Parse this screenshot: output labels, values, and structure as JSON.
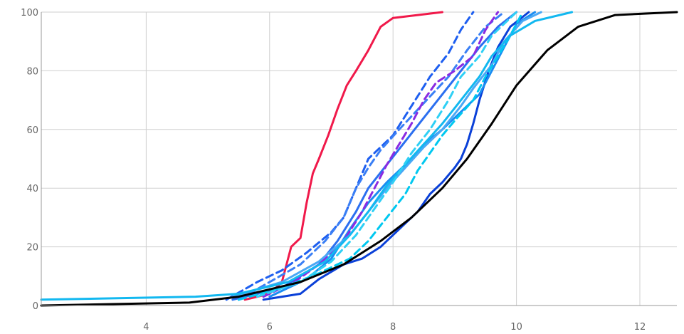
{
  "chart_data": {
    "type": "line",
    "title": "",
    "xlabel": "",
    "ylabel": "",
    "xlim": [
      2.3,
      12.6
    ],
    "ylim": [
      0,
      100
    ],
    "xticks": [
      4,
      6,
      8,
      10,
      12
    ],
    "yticks": [
      0,
      20,
      40,
      60,
      80,
      100
    ],
    "x_tick_labels": [
      "4",
      "6",
      "8",
      "10",
      "12"
    ],
    "y_tick_labels": [
      "0",
      "20",
      "40",
      "60",
      "80",
      "100"
    ],
    "grid": true,
    "legend": "none",
    "series": [
      {
        "color": "#000000",
        "dash": "solid",
        "points": [
          [
            2.3,
            0
          ],
          [
            4.7,
            1
          ],
          [
            5.5,
            3
          ],
          [
            6.5,
            8
          ],
          [
            7.2,
            14
          ],
          [
            7.8,
            22
          ],
          [
            8.3,
            30
          ],
          [
            8.8,
            40
          ],
          [
            9.2,
            50
          ],
          [
            9.6,
            62
          ],
          [
            10.0,
            75
          ],
          [
            10.5,
            87
          ],
          [
            11.0,
            95
          ],
          [
            11.6,
            99
          ],
          [
            12.6,
            100
          ]
        ]
      },
      {
        "color": "#f0194a",
        "dash": "solid",
        "points": [
          [
            5.6,
            2
          ],
          [
            6.0,
            4
          ],
          [
            6.2,
            8
          ],
          [
            6.35,
            20
          ],
          [
            6.5,
            23
          ],
          [
            6.6,
            35
          ],
          [
            6.7,
            45
          ],
          [
            6.8,
            50
          ],
          [
            6.95,
            58
          ],
          [
            7.1,
            67
          ],
          [
            7.25,
            75
          ],
          [
            7.4,
            80
          ],
          [
            7.6,
            87
          ],
          [
            7.8,
            95
          ],
          [
            8.0,
            98
          ],
          [
            8.8,
            100
          ]
        ]
      },
      {
        "color": "#0a40d8",
        "dash": "solid",
        "points": [
          [
            5.9,
            2
          ],
          [
            6.5,
            4
          ],
          [
            6.8,
            9
          ],
          [
            7.2,
            14
          ],
          [
            7.5,
            16
          ],
          [
            7.8,
            20
          ],
          [
            8.2,
            28
          ],
          [
            8.4,
            32
          ],
          [
            8.6,
            38
          ],
          [
            8.8,
            42
          ],
          [
            9.0,
            47
          ],
          [
            9.1,
            50
          ],
          [
            9.2,
            55
          ],
          [
            9.3,
            62
          ],
          [
            9.4,
            70
          ],
          [
            9.55,
            80
          ],
          [
            9.7,
            88
          ],
          [
            9.9,
            95
          ],
          [
            10.2,
            100
          ]
        ]
      },
      {
        "color": "#1e5ff0",
        "dash": "dashed",
        "points": [
          [
            5.3,
            2
          ],
          [
            5.8,
            8
          ],
          [
            6.2,
            12
          ],
          [
            6.6,
            18
          ],
          [
            7.0,
            25
          ],
          [
            7.2,
            30
          ],
          [
            7.4,
            40
          ],
          [
            7.6,
            50
          ],
          [
            7.8,
            54
          ],
          [
            8.0,
            58
          ],
          [
            8.3,
            68
          ],
          [
            8.6,
            78
          ],
          [
            8.9,
            86
          ],
          [
            9.1,
            94
          ],
          [
            9.3,
            100
          ]
        ]
      },
      {
        "color": "#3a7ff5",
        "dash": "dashed",
        "points": [
          [
            5.5,
            2
          ],
          [
            6.0,
            8
          ],
          [
            6.5,
            14
          ],
          [
            6.9,
            22
          ],
          [
            7.2,
            30
          ],
          [
            7.4,
            40
          ],
          [
            7.6,
            47
          ],
          [
            7.8,
            53
          ],
          [
            8.1,
            60
          ],
          [
            8.5,
            69
          ],
          [
            8.9,
            78
          ],
          [
            9.2,
            87
          ],
          [
            9.5,
            95
          ],
          [
            9.8,
            100
          ]
        ]
      },
      {
        "color": "#2b6ff0",
        "dash": "solid",
        "points": [
          [
            5.4,
            2
          ],
          [
            6.2,
            6
          ],
          [
            6.8,
            14
          ],
          [
            7.1,
            22
          ],
          [
            7.4,
            32
          ],
          [
            7.6,
            40
          ],
          [
            7.9,
            48
          ],
          [
            8.2,
            56
          ],
          [
            8.5,
            64
          ],
          [
            8.8,
            72
          ],
          [
            9.1,
            80
          ],
          [
            9.4,
            88
          ],
          [
            9.7,
            95
          ],
          [
            10.0,
            100
          ]
        ]
      },
      {
        "color": "#1a8df2",
        "dash": "solid",
        "points": [
          [
            6.0,
            3
          ],
          [
            6.6,
            9
          ],
          [
            7.0,
            16
          ],
          [
            7.3,
            26
          ],
          [
            7.6,
            35
          ],
          [
            7.9,
            42
          ],
          [
            8.2,
            48
          ],
          [
            8.5,
            55
          ],
          [
            8.8,
            60
          ],
          [
            9.1,
            66
          ],
          [
            9.4,
            72
          ],
          [
            9.6,
            80
          ],
          [
            9.8,
            88
          ],
          [
            10.0,
            96
          ],
          [
            10.3,
            100
          ]
        ]
      },
      {
        "color": "#8a2be2",
        "dash": "dashed",
        "points": [
          [
            5.9,
            3
          ],
          [
            6.4,
            8
          ],
          [
            6.8,
            14
          ],
          [
            7.2,
            22
          ],
          [
            7.5,
            32
          ],
          [
            7.7,
            40
          ],
          [
            7.9,
            48
          ],
          [
            8.1,
            55
          ],
          [
            8.3,
            62
          ],
          [
            8.5,
            70
          ],
          [
            8.7,
            76
          ],
          [
            9.0,
            80
          ],
          [
            9.3,
            85
          ],
          [
            9.5,
            94
          ],
          [
            9.7,
            100
          ]
        ]
      },
      {
        "color": "#4aa8f5",
        "dash": "solid",
        "points": [
          [
            5.4,
            3
          ],
          [
            6.2,
            8
          ],
          [
            6.8,
            15
          ],
          [
            7.3,
            24
          ],
          [
            7.6,
            32
          ],
          [
            7.9,
            40
          ],
          [
            8.2,
            47
          ],
          [
            8.5,
            54
          ],
          [
            8.8,
            60
          ],
          [
            9.1,
            68
          ],
          [
            9.3,
            74
          ],
          [
            9.6,
            82
          ],
          [
            9.8,
            90
          ],
          [
            10.1,
            97
          ],
          [
            10.4,
            100
          ]
        ]
      },
      {
        "color": "#00c8f0",
        "dash": "dashed",
        "points": [
          [
            5.5,
            2
          ],
          [
            6.2,
            6
          ],
          [
            6.8,
            11
          ],
          [
            7.3,
            16
          ],
          [
            7.6,
            22
          ],
          [
            7.9,
            30
          ],
          [
            8.2,
            38
          ],
          [
            8.4,
            46
          ],
          [
            8.6,
            52
          ],
          [
            8.8,
            58
          ],
          [
            9.0,
            63
          ],
          [
            9.3,
            70
          ],
          [
            9.5,
            78
          ],
          [
            9.7,
            85
          ],
          [
            9.9,
            92
          ],
          [
            10.1,
            100
          ]
        ]
      },
      {
        "color": "#12b8f0",
        "dash": "solid",
        "points": [
          [
            2.3,
            2
          ],
          [
            4.8,
            3
          ],
          [
            5.5,
            4
          ],
          [
            6.3,
            8
          ],
          [
            6.9,
            15
          ],
          [
            7.3,
            24
          ],
          [
            7.6,
            32
          ],
          [
            7.9,
            41
          ],
          [
            8.2,
            48
          ],
          [
            8.5,
            55
          ],
          [
            8.8,
            62
          ],
          [
            9.1,
            70
          ],
          [
            9.4,
            78
          ],
          [
            9.6,
            85
          ],
          [
            9.9,
            92
          ],
          [
            10.3,
            97
          ],
          [
            10.9,
            100
          ]
        ]
      },
      {
        "color": "#2fd0f5",
        "dash": "dashed",
        "points": [
          [
            5.8,
            3
          ],
          [
            6.5,
            8
          ],
          [
            7.0,
            15
          ],
          [
            7.4,
            24
          ],
          [
            7.7,
            33
          ],
          [
            8.0,
            42
          ],
          [
            8.3,
            52
          ],
          [
            8.6,
            60
          ],
          [
            8.9,
            70
          ],
          [
            9.1,
            78
          ],
          [
            9.4,
            85
          ],
          [
            9.6,
            92
          ],
          [
            10.0,
            100
          ]
        ]
      }
    ]
  }
}
